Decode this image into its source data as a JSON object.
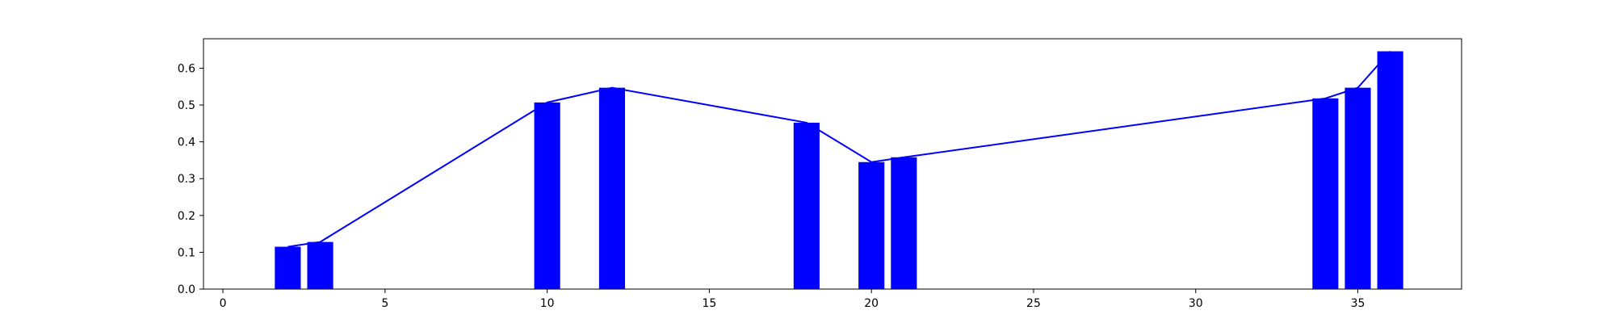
{
  "chart_data": {
    "type": "bar",
    "title": "",
    "xlabel": "",
    "ylabel": "",
    "xlim": [
      -0.6,
      38.2
    ],
    "ylim": [
      0,
      0.68
    ],
    "x_ticks": [
      0,
      5,
      10,
      15,
      20,
      25,
      30,
      35
    ],
    "y_ticks": [
      0.0,
      0.1,
      0.2,
      0.3,
      0.4,
      0.5,
      0.6
    ],
    "x_tick_labels": [
      "0",
      "5",
      "10",
      "15",
      "20",
      "25",
      "30",
      "35"
    ],
    "y_tick_labels": [
      "0.0",
      "0.1",
      "0.2",
      "0.3",
      "0.4",
      "0.5",
      "0.6"
    ],
    "bar_width": 0.8,
    "series": [
      {
        "name": "bars",
        "type": "bar",
        "color": "#0000ff",
        "x": [
          2,
          3,
          10,
          12,
          18,
          20,
          21,
          34,
          35,
          36
        ],
        "values": [
          0.115,
          0.128,
          0.507,
          0.547,
          0.452,
          0.345,
          0.358,
          0.518,
          0.547,
          0.646
        ]
      },
      {
        "name": "line",
        "type": "line",
        "color": "#0000ff",
        "x": [
          2,
          3,
          10,
          12,
          18,
          20,
          21,
          34,
          35,
          36
        ],
        "values": [
          0.115,
          0.128,
          0.507,
          0.547,
          0.452,
          0.345,
          0.358,
          0.518,
          0.547,
          0.646
        ]
      }
    ]
  }
}
